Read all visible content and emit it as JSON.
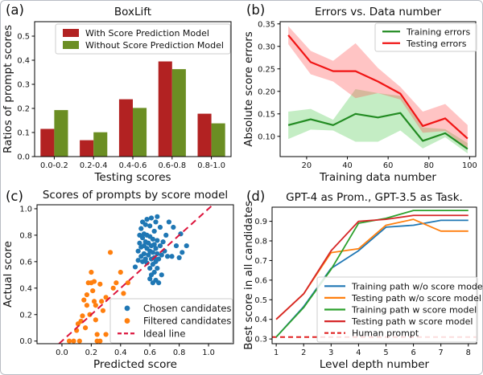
{
  "figure": {
    "background": "#ffffff",
    "border_color": "#b9bdc4"
  },
  "chart_data": [
    {
      "panel_label": "(a)",
      "type": "bar",
      "title": "BoxLift",
      "xlabel": "Testing scores",
      "ylabel": "Ratios of prompt scores",
      "categories": [
        "0.0-0.2",
        "0.2-0.4",
        "0.4-0.6",
        "0.6-0.8",
        "0.8-1.0"
      ],
      "series": [
        {
          "name": "With Score Prediction Model",
          "color": "#b22222",
          "marker": "square",
          "values": [
            0.115,
            0.068,
            0.238,
            0.395,
            0.178
          ]
        },
        {
          "name": "Without Score Prediction Model",
          "color": "#6b8e23",
          "marker": "square",
          "values": [
            0.193,
            0.101,
            0.202,
            0.363,
            0.138
          ]
        }
      ],
      "ylim": [
        0,
        0.56
      ],
      "yticks": [
        {
          "v": 0.0,
          "label": "0.0"
        },
        {
          "v": 0.1,
          "label": "0.1"
        },
        {
          "v": 0.2,
          "label": "0.2"
        },
        {
          "v": 0.3,
          "label": "0.3"
        },
        {
          "v": 0.4,
          "label": "0.4"
        },
        {
          "v": 0.5,
          "label": "0.5"
        }
      ],
      "grid": false,
      "legend_position": "upper center"
    },
    {
      "panel_label": "(b)",
      "type": "line-band",
      "title": "Errors vs. Data number",
      "xlabel": "Training data number",
      "ylabel": "Absolute score errors",
      "x": [
        11,
        22,
        33,
        44,
        55,
        66,
        77,
        88,
        99
      ],
      "series": [
        {
          "name": "Training errors",
          "color": "#228b22",
          "marker": "line",
          "band_fill": "rgba(70,200,70,0.32)",
          "values": [
            0.125,
            0.138,
            0.125,
            0.15,
            0.142,
            0.152,
            0.09,
            0.107,
            0.072
          ],
          "band_high": [
            0.155,
            0.161,
            0.137,
            0.205,
            0.196,
            0.19,
            0.12,
            0.116,
            0.085
          ],
          "band_low": [
            0.094,
            0.115,
            0.113,
            0.088,
            0.088,
            0.113,
            0.073,
            0.098,
            0.062
          ]
        },
        {
          "name": "Testing errors",
          "color": "#f01414",
          "marker": "line",
          "band_fill": "rgba(255,70,70,0.32)",
          "values": [
            0.325,
            0.265,
            0.245,
            0.245,
            0.222,
            0.195,
            0.123,
            0.14,
            0.095
          ],
          "band_high": [
            0.345,
            0.29,
            0.268,
            0.307,
            0.252,
            0.21,
            0.155,
            0.172,
            0.125
          ],
          "band_low": [
            0.305,
            0.238,
            0.222,
            0.185,
            0.196,
            0.182,
            0.108,
            0.112,
            0.072
          ]
        }
      ],
      "xlim": [
        7,
        103
      ],
      "ylim": [
        0.055,
        0.355
      ],
      "xticks": [
        {
          "v": 20,
          "label": "20"
        },
        {
          "v": 40,
          "label": "40"
        },
        {
          "v": 60,
          "label": "60"
        },
        {
          "v": 80,
          "label": "80"
        },
        {
          "v": 100,
          "label": "100"
        }
      ],
      "yticks": [
        {
          "v": 0.1,
          "label": "0.10"
        },
        {
          "v": 0.15,
          "label": "0.15"
        },
        {
          "v": 0.2,
          "label": "0.20"
        },
        {
          "v": 0.25,
          "label": "0.25"
        },
        {
          "v": 0.3,
          "label": "0.30"
        },
        {
          "v": 0.35,
          "label": "0.35"
        }
      ],
      "grid": false,
      "legend_position": "upper right"
    },
    {
      "panel_label": "(c)",
      "type": "scatter",
      "title": "Scores of prompts by score model",
      "xlabel": "Predicted score",
      "ylabel": "Actual score",
      "xlim": [
        -0.17,
        1.17
      ],
      "ylim": [
        -0.02,
        1.03
      ],
      "xticks": [
        {
          "v": 0.0,
          "label": "0.0"
        },
        {
          "v": 0.2,
          "label": "0.2"
        },
        {
          "v": 0.4,
          "label": "0.4"
        },
        {
          "v": 0.6,
          "label": "0.6"
        },
        {
          "v": 0.8,
          "label": "0.8"
        },
        {
          "v": 1.0,
          "label": "1.0"
        }
      ],
      "yticks": [
        {
          "v": 0.0,
          "label": "0.0"
        },
        {
          "v": 0.2,
          "label": "0.2"
        },
        {
          "v": 0.4,
          "label": "0.4"
        },
        {
          "v": 0.6,
          "label": "0.6"
        },
        {
          "v": 0.8,
          "label": "0.8"
        },
        {
          "v": 1.0,
          "label": "1.0"
        }
      ],
      "series": [
        {
          "name": "Chosen candidates",
          "color": "#1f77b4",
          "marker": "dot",
          "points": [
            [
              0.5,
              0.56
            ],
            [
              0.52,
              0.61
            ],
            [
              0.52,
              0.68
            ],
            [
              0.53,
              0.74
            ],
            [
              0.53,
              0.8
            ],
            [
              0.54,
              0.64
            ],
            [
              0.54,
              0.71
            ],
            [
              0.54,
              0.85
            ],
            [
              0.55,
              0.6
            ],
            [
              0.55,
              0.78
            ],
            [
              0.55,
              0.9
            ],
            [
              0.56,
              0.66
            ],
            [
              0.56,
              0.72
            ],
            [
              0.56,
              0.81
            ],
            [
              0.57,
              0.62
            ],
            [
              0.57,
              0.75
            ],
            [
              0.57,
              0.88
            ],
            [
              0.58,
              0.59
            ],
            [
              0.58,
              0.7
            ],
            [
              0.58,
              0.8
            ],
            [
              0.58,
              0.92
            ],
            [
              0.59,
              0.65
            ],
            [
              0.59,
              0.74
            ],
            [
              0.6,
              0.47
            ],
            [
              0.6,
              0.55
            ],
            [
              0.6,
              0.68
            ],
            [
              0.6,
              0.79
            ],
            [
              0.6,
              0.87
            ],
            [
              0.61,
              0.5
            ],
            [
              0.61,
              0.62
            ],
            [
              0.61,
              0.72
            ],
            [
              0.61,
              0.93
            ],
            [
              0.62,
              0.44
            ],
            [
              0.62,
              0.58
            ],
            [
              0.62,
              0.67
            ],
            [
              0.62,
              0.77
            ],
            [
              0.63,
              0.52
            ],
            [
              0.63,
              0.63
            ],
            [
              0.63,
              0.73
            ],
            [
              0.63,
              0.83
            ],
            [
              0.64,
              0.46
            ],
            [
              0.64,
              0.6
            ],
            [
              0.64,
              0.7
            ],
            [
              0.64,
              0.9
            ],
            [
              0.65,
              0.55
            ],
            [
              0.65,
              0.66
            ],
            [
              0.65,
              0.76
            ],
            [
              0.65,
              0.94
            ],
            [
              0.66,
              0.44
            ],
            [
              0.66,
              0.62
            ],
            [
              0.67,
              0.72
            ],
            [
              0.67,
              0.86
            ],
            [
              0.68,
              0.5
            ],
            [
              0.68,
              0.65
            ],
            [
              0.69,
              0.75
            ],
            [
              0.7,
              0.68
            ],
            [
              0.71,
              0.8
            ],
            [
              0.72,
              0.64
            ],
            [
              0.73,
              0.9
            ],
            [
              0.75,
              0.64
            ],
            [
              0.76,
              0.86
            ],
            [
              0.78,
              0.72
            ],
            [
              0.8,
              0.63
            ],
            [
              0.81,
              0.81
            ],
            [
              0.82,
              0.67
            ],
            [
              0.85,
              0.72
            ]
          ]
        },
        {
          "name": "Filtered candidates",
          "color": "#ff7f0e",
          "marker": "dot",
          "points": [
            [
              0.05,
              0.0
            ],
            [
              0.08,
              0.0
            ],
            [
              0.1,
              0.08
            ],
            [
              0.11,
              0.13
            ],
            [
              0.12,
              0.0
            ],
            [
              0.13,
              0.15
            ],
            [
              0.14,
              0.19
            ],
            [
              0.15,
              0.31
            ],
            [
              0.16,
              0.1
            ],
            [
              0.17,
              0.27
            ],
            [
              0.17,
              0.35
            ],
            [
              0.18,
              0.44
            ],
            [
              0.19,
              0.2
            ],
            [
              0.2,
              0.44
            ],
            [
              0.2,
              0.52
            ],
            [
              0.21,
              0.38
            ],
            [
              0.22,
              0.3
            ],
            [
              0.22,
              0.45
            ],
            [
              0.23,
              0.16
            ],
            [
              0.23,
              0.27
            ],
            [
              0.24,
              0.0
            ],
            [
              0.24,
              0.05
            ],
            [
              0.26,
              0.0
            ],
            [
              0.26,
              0.43
            ],
            [
              0.27,
              0.3
            ],
            [
              0.28,
              0.23
            ],
            [
              0.3,
              0.05
            ],
            [
              0.3,
              0.33
            ],
            [
              0.33,
              0.67
            ],
            [
              0.35,
              0.4
            ],
            [
              0.37,
              0.44
            ],
            [
              0.4,
              0.52
            ],
            [
              0.42,
              0.36
            ],
            [
              0.45,
              0.44
            ]
          ]
        }
      ],
      "ideal_line": {
        "name": "Ideal line",
        "color": "#dc143c",
        "marker": "dash",
        "from": [
          -0.02,
          -0.02
        ],
        "to": [
          1.05,
          1.05
        ]
      },
      "grid": false,
      "legend_position": "lower right"
    },
    {
      "panel_label": "(d)",
      "type": "line",
      "title": "GPT-4 as Prom., GPT-3.5 as Task.",
      "xlabel": "Level depth number",
      "ylabel": "Best score in all candidates",
      "x": [
        1,
        2,
        3,
        4,
        5,
        6,
        7,
        8
      ],
      "series": [
        {
          "name": "Training path w/o score model",
          "color": "#1f77b4",
          "marker": "line",
          "values": [
            0.31,
            0.465,
            0.66,
            0.75,
            0.87,
            0.88,
            0.905,
            0.905
          ]
        },
        {
          "name": "Testing path w/o score model",
          "color": "#ff7f0e",
          "marker": "line",
          "values": [
            0.4,
            0.53,
            0.74,
            0.76,
            0.88,
            0.91,
            0.85,
            0.85
          ]
        },
        {
          "name": "Training path w score model",
          "color": "#2ca02c",
          "marker": "line",
          "values": [
            0.31,
            0.46,
            0.655,
            0.89,
            0.915,
            0.955,
            0.955,
            0.955
          ]
        },
        {
          "name": "Testing path w score model",
          "color": "#d62728",
          "marker": "line",
          "values": [
            0.4,
            0.53,
            0.75,
            0.9,
            0.91,
            0.93,
            0.93,
            0.93
          ]
        }
      ],
      "human_line": {
        "name": "Human prompt",
        "color": "#e02020",
        "marker": "dash",
        "value": 0.31
      },
      "xlim": [
        0.85,
        8.3
      ],
      "ylim": [
        0.276,
        0.972
      ],
      "xticks": [
        {
          "v": 1,
          "label": "1"
        },
        {
          "v": 2,
          "label": "2"
        },
        {
          "v": 3,
          "label": "3"
        },
        {
          "v": 4,
          "label": "4"
        },
        {
          "v": 5,
          "label": "5"
        },
        {
          "v": 6,
          "label": "6"
        },
        {
          "v": 7,
          "label": "7"
        },
        {
          "v": 8,
          "label": "8"
        }
      ],
      "yticks": [
        {
          "v": 0.3,
          "label": "0.3"
        },
        {
          "v": 0.4,
          "label": "0.4"
        },
        {
          "v": 0.5,
          "label": "0.5"
        },
        {
          "v": 0.6,
          "label": "0.6"
        },
        {
          "v": 0.7,
          "label": "0.7"
        },
        {
          "v": 0.8,
          "label": "0.8"
        },
        {
          "v": 0.9,
          "label": "0.9"
        }
      ],
      "grid": false,
      "legend_position": "lower right"
    }
  ]
}
